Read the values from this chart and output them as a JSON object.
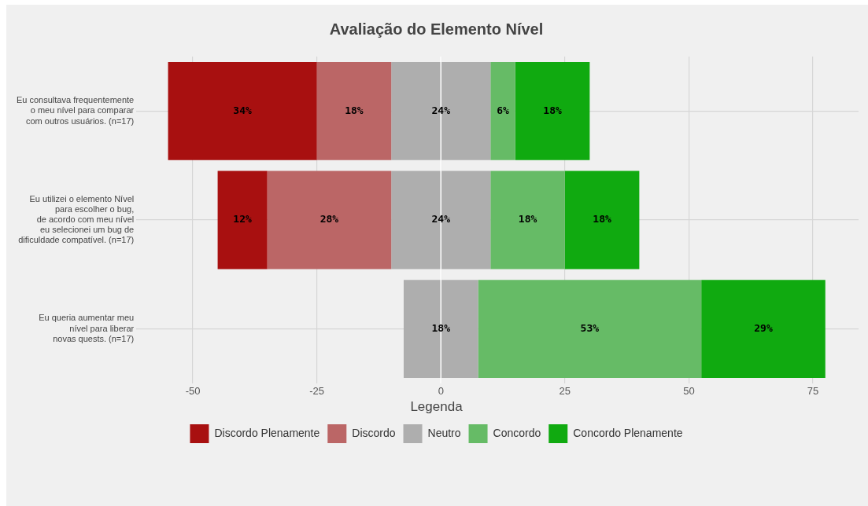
{
  "chart_data": {
    "type": "bar",
    "orientation": "horizontal",
    "title": "Avaliação do Elemento Nível",
    "legend_title": "Legenda",
    "legend": "bottom",
    "grid": true,
    "categories": [
      "Eu consultava frequentemente\no meu nível para comparar\ncom outros usuários. (n=17)",
      "Eu utilizei o elemento Nível\npara escolher o bug,\nde acordo com meu nível\neu selecionei um bug de\ndificuldade compatível. (n=17)",
      "Eu queria aumentar meu\nnível para liberar\nnovas quests. (n=17)"
    ],
    "series": [
      {
        "name": "Discordo Plenamente",
        "color": "#a81010",
        "base": [
          -55,
          -45,
          null
        ],
        "values": [
          30,
          10,
          null
        ]
      },
      {
        "name": "Discordo",
        "color": "#bb6666",
        "base": [
          -25,
          -35,
          null
        ],
        "values": [
          15,
          25,
          null
        ]
      },
      {
        "name": "Neutro",
        "color": "#aeaeae",
        "base": [
          -10,
          -10,
          -7.5
        ],
        "values": [
          20,
          20,
          15
        ]
      },
      {
        "name": "Concordo",
        "color": "#66bb66",
        "base": [
          10,
          10,
          7.5
        ],
        "values": [
          5,
          15,
          45
        ]
      },
      {
        "name": "Concordo Plenamente",
        "color": "#10aa10",
        "base": [
          15,
          25,
          52.5
        ],
        "values": [
          15,
          15,
          25
        ]
      }
    ],
    "annotations": [
      "34%",
      "18%",
      "24%",
      "6%",
      "18%",
      "12%",
      "28%",
      "24%",
      "18%",
      "18%",
      "18%",
      "53%",
      "29%"
    ],
    "xlim": [
      -61.4,
      84.2
    ],
    "xticks": [
      -50,
      -25,
      0,
      25,
      50,
      75
    ],
    "ref_lines": [
      {
        "axis": "x",
        "value": 0,
        "color": "#ffffff"
      }
    ]
  }
}
